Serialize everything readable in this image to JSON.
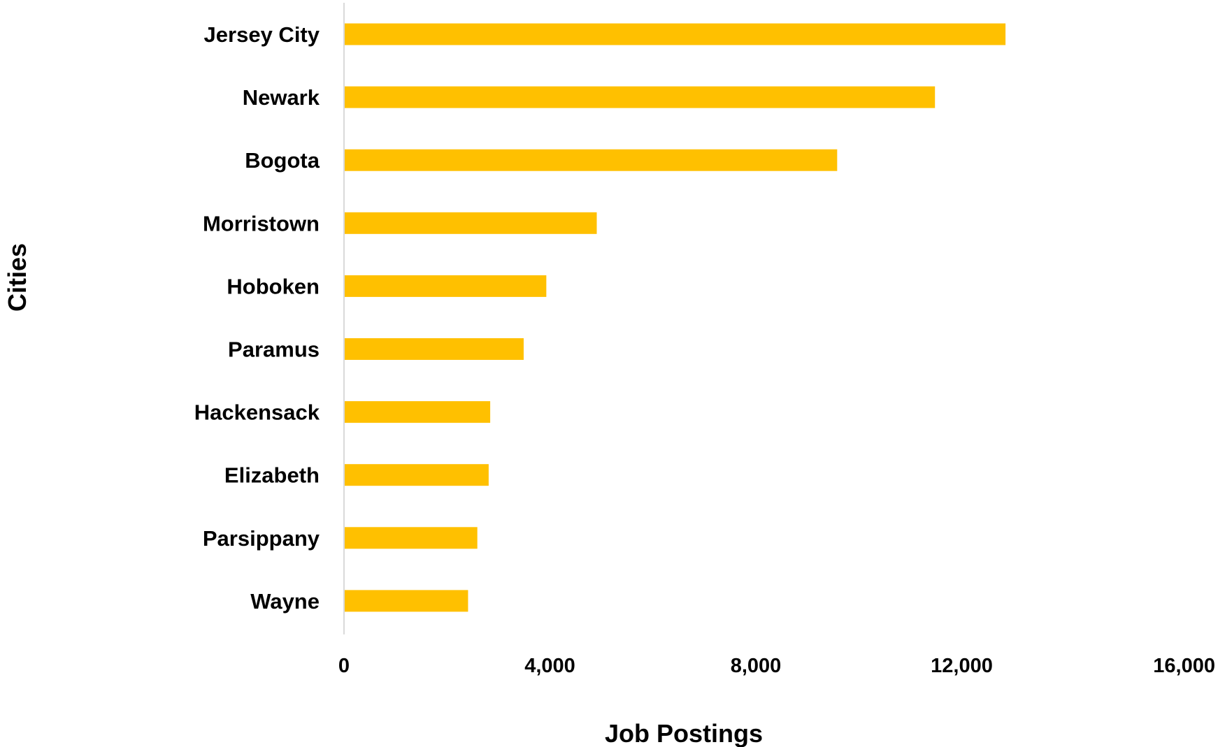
{
  "chart_data": {
    "type": "bar",
    "orientation": "horizontal",
    "categories": [
      "Jersey City",
      "Newark",
      "Bogota",
      "Morristown",
      "Hoboken",
      "Paramus",
      "Hackensack",
      "Elizabeth",
      "Parsippany",
      "Wayne"
    ],
    "values": [
      12850,
      11480,
      9580,
      4910,
      3930,
      3490,
      2840,
      2810,
      2590,
      2410
    ],
    "xlabel": "Job Postings",
    "ylabel": "Cities",
    "xlim": [
      0,
      16000
    ],
    "xticks": [
      "0",
      "4,000",
      "8,000",
      "12,000",
      "16,000"
    ],
    "grid": false,
    "bar_color": "#FFC000",
    "axis_color": "#D9D9D9"
  }
}
